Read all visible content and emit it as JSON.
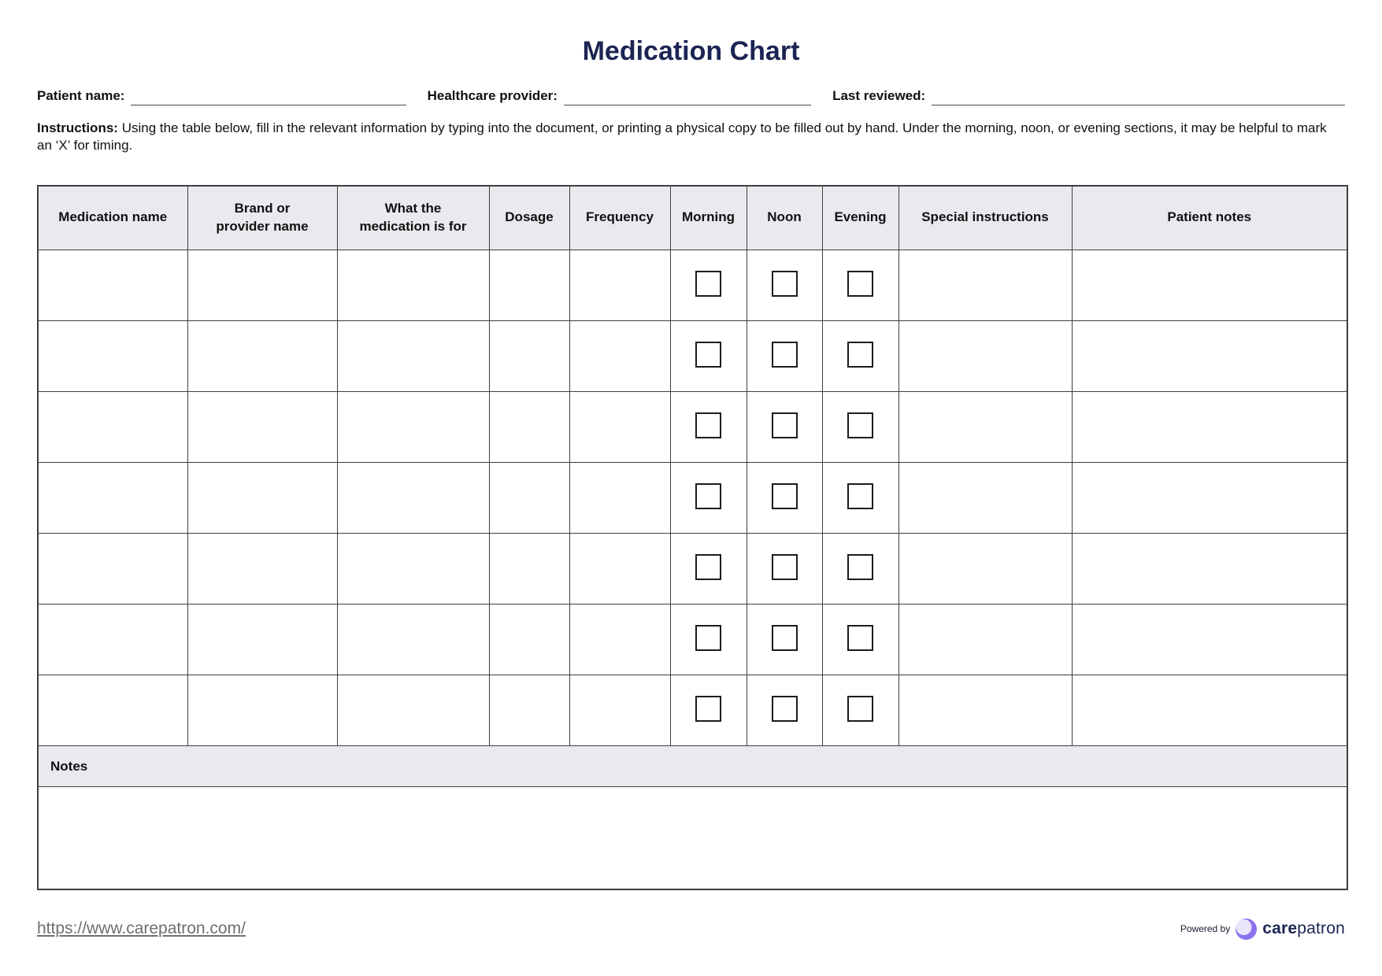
{
  "title": "Medication Chart",
  "fields": [
    {
      "label": "Patient name:",
      "value": ""
    },
    {
      "label": "Healthcare provider:",
      "value": ""
    },
    {
      "label": "Last reviewed:",
      "value": ""
    }
  ],
  "instructions": {
    "label": "Instructions:",
    "text": "Using the table below, fill in the relevant information by typing into the document, or printing a physical copy to be filled out by hand. Under the morning, noon, or evening sections, it may be helpful to mark an ‘X’ for timing."
  },
  "table": {
    "columns": [
      "Medication name",
      "Brand or\nprovider name",
      "What the\nmedication is for",
      "Dosage",
      "Frequency",
      "Morning",
      "Noon",
      "Evening",
      "Special instructions",
      "Patient notes"
    ],
    "column_keys": [
      "medication-name",
      "brand-or-provider-name",
      "what-the-medication-is-for",
      "dosage",
      "frequency",
      "morning",
      "noon",
      "evening",
      "special-instructions",
      "patient-notes"
    ],
    "checkbox_column_indexes": [
      5,
      6,
      7
    ],
    "row_count": 7,
    "notes_label": "Notes",
    "notes_value": ""
  },
  "footer": {
    "link": "https://www.carepatron.com/",
    "powered_by": "Powered by",
    "brand_bold": "care",
    "brand_regular": "patron"
  },
  "colors": {
    "title_navy": "#1b2453",
    "header_gray": "#e8eaee",
    "border_dark": "#3e3e3e",
    "text_black": "#111111",
    "link_gray": "#6f6f6f",
    "logo_purple": "#8b72f0",
    "logo_lavender": "#eae5fb"
  }
}
